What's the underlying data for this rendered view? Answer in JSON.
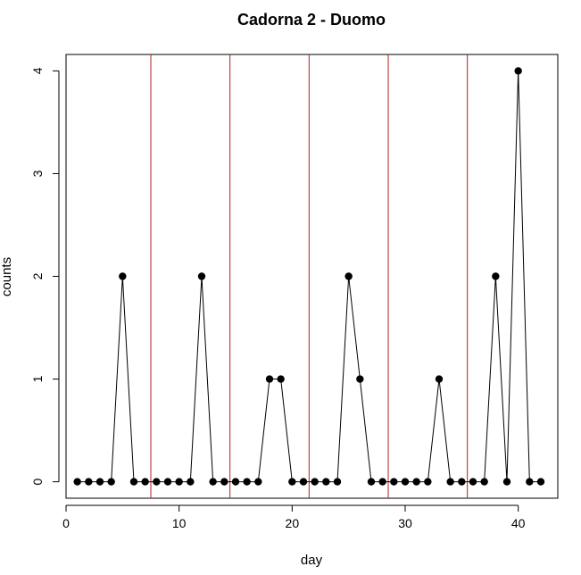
{
  "chart_data": {
    "type": "line",
    "title": "Cadorna 2 - Duomo",
    "xlabel": "day",
    "ylabel": "counts",
    "xlim": [
      0,
      43.5
    ],
    "ylim": [
      -0.16,
      4.16
    ],
    "xticks": [
      0,
      10,
      20,
      30,
      40
    ],
    "yticks": [
      0,
      1,
      2,
      3,
      4
    ],
    "x": [
      1,
      2,
      3,
      4,
      5,
      6,
      7,
      8,
      9,
      10,
      11,
      12,
      13,
      14,
      15,
      16,
      17,
      18,
      19,
      20,
      21,
      22,
      23,
      24,
      25,
      26,
      27,
      28,
      29,
      30,
      31,
      32,
      33,
      34,
      35,
      36,
      37,
      38,
      39,
      40,
      41,
      42
    ],
    "series": [
      {
        "values": [
          0,
          0,
          0,
          0,
          2,
          0,
          0,
          0,
          0,
          0,
          0,
          2,
          0,
          0,
          0,
          0,
          0,
          1,
          1,
          0,
          0,
          0,
          0,
          0,
          2,
          1,
          0,
          0,
          0,
          0,
          0,
          0,
          1,
          0,
          0,
          0,
          0,
          2,
          0,
          4,
          0,
          0
        ]
      }
    ],
    "vlines": [
      7.5,
      14.5,
      21.5,
      28.5,
      35.5
    ],
    "colors": {
      "line": "#000000",
      "vline": "#b22222",
      "marker": "#000000"
    },
    "grid": false,
    "legend": "none"
  }
}
